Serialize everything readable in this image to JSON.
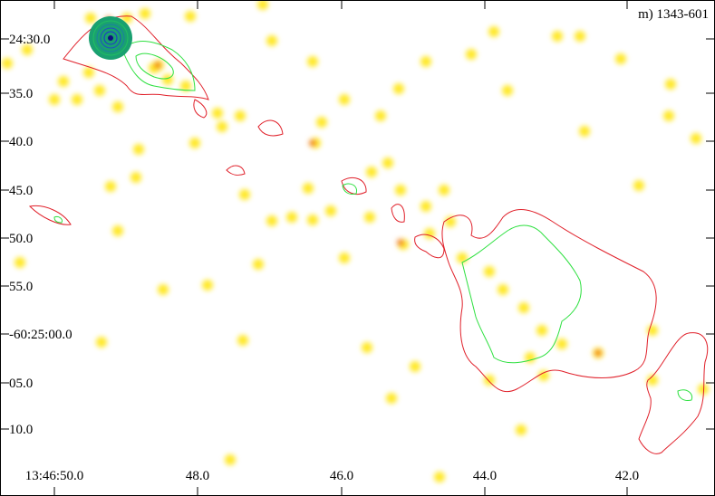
{
  "panel_label": "m) 1343-601",
  "y_axis": {
    "tick_labels": [
      "24:30.0",
      "35.0",
      "40.0",
      "45.0",
      "50.0",
      "55.0",
      "-60:25:00.0",
      "05.0",
      "10.0"
    ]
  },
  "x_axis": {
    "tick_labels": [
      "13:46:50.0",
      "48.0",
      "46.0",
      "44.0",
      "42.0"
    ]
  }
}
